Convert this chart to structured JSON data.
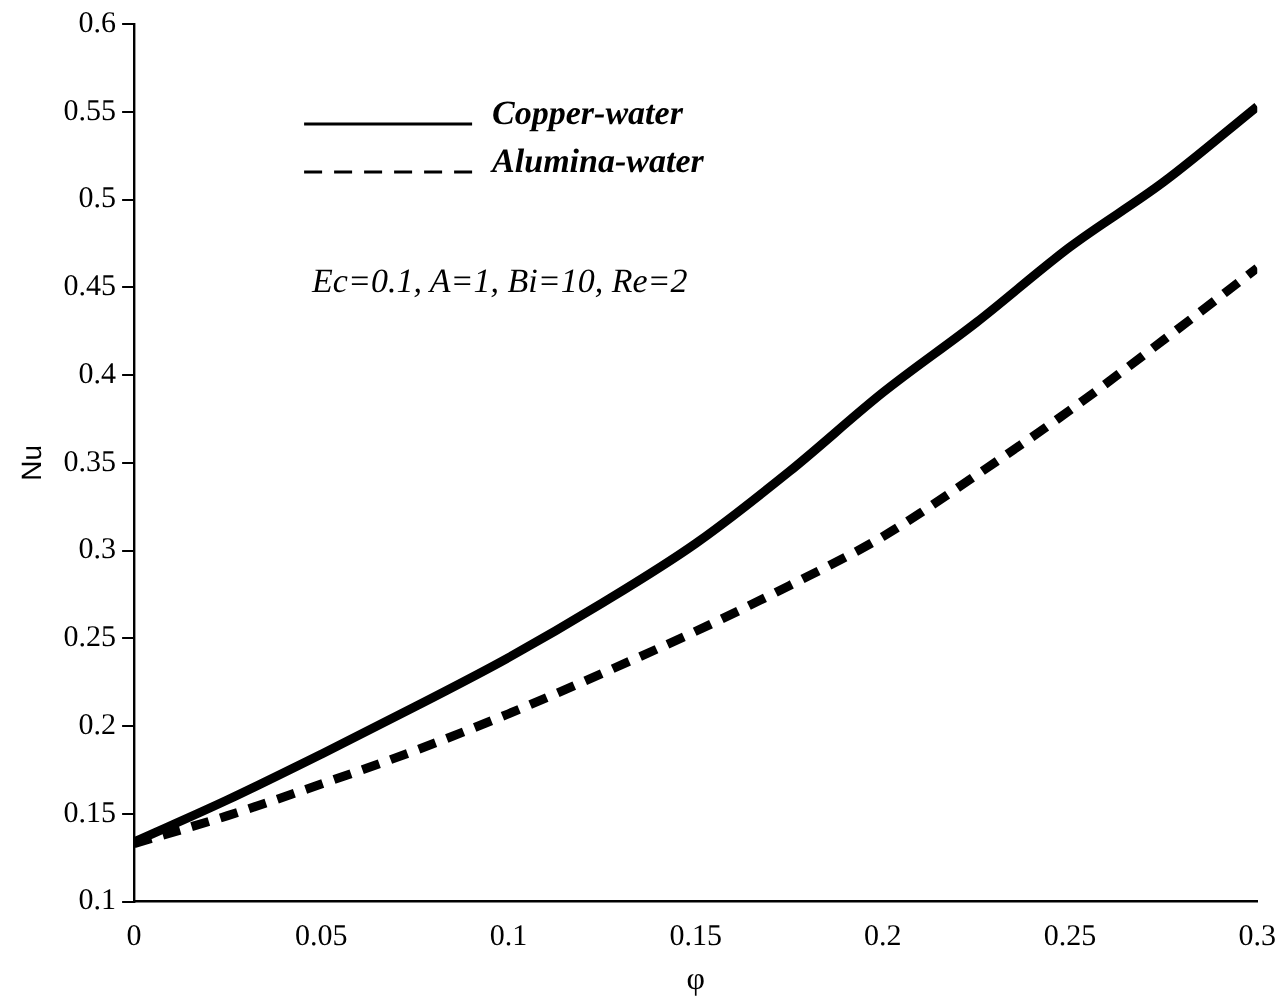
{
  "chart_data": {
    "type": "line",
    "xlabel": "φ",
    "ylabel": "Nu",
    "xlim": [
      0,
      0.3
    ],
    "xticks": [
      0,
      0.05,
      0.1,
      0.15,
      0.2,
      0.25,
      0.3
    ],
    "ylim": [
      0.1,
      0.6
    ],
    "yticks": [
      0.1,
      0.15,
      0.2,
      0.25,
      0.3,
      0.35,
      0.4,
      0.45,
      0.5,
      0.55,
      0.6
    ],
    "grid": false,
    "legend": "top left",
    "marker": "none",
    "x": [
      0,
      0.025,
      0.05,
      0.075,
      0.1,
      0.125,
      0.15,
      0.175,
      0.2,
      0.225,
      0.25,
      0.275,
      0.3
    ],
    "series": [
      {
        "name": "Copper-water",
        "color": "#000000",
        "line_style": "solid",
        "values": [
          0.134,
          0.158,
          0.184,
          0.211,
          0.239,
          0.27,
          0.304,
          0.345,
          0.39,
          0.43,
          0.473,
          0.51,
          0.553
        ]
      },
      {
        "name": "Alumina-water",
        "color": "#000000",
        "line_style": "dashed",
        "values": [
          0.133,
          0.149,
          0.167,
          0.186,
          0.207,
          0.23,
          0.254,
          0.28,
          0.308,
          0.343,
          0.38,
          0.42,
          0.461
        ]
      }
    ],
    "annotations": [
      "Ec=0.1, A=1, Bi=10, Re=2"
    ]
  }
}
